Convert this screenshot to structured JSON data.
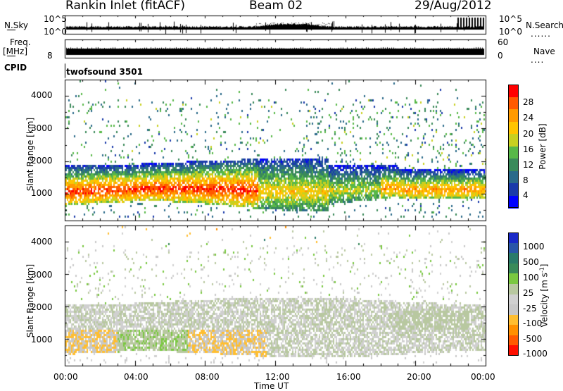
{
  "header": {
    "station": "Rankin Inlet (fitACF)",
    "beam": "Beam 02",
    "date": "29/Aug/2012"
  },
  "summary_panels": {
    "nsky_label": "N.Sky",
    "nsearch_label": "N.Search",
    "nsearch_key": "......",
    "counts_ticks": [
      "10^5",
      "10^0"
    ],
    "freq_label_top": "Freq.",
    "freq_label_unit": "[MHz]",
    "freq_ticks": [
      "8"
    ],
    "nave_label": "Nave",
    "nave_key": "....",
    "nave_ticks": [
      "60",
      "0"
    ],
    "cpid_label": "CPID",
    "cpid_value": "twofsound 3501"
  },
  "axes": {
    "y_label": "Slant Range [km]",
    "y_ticks": [
      "4000",
      "3000",
      "2000",
      "1000"
    ],
    "x_label": "Time UT",
    "x_ticks": [
      "00:00",
      "04:00",
      "08:00",
      "12:00",
      "16:00",
      "20:00",
      "00:00"
    ]
  },
  "colorbars": {
    "power": {
      "label": "Power [dB]",
      "ticks": [
        "28",
        "24",
        "20",
        "16",
        "12",
        "8",
        "4"
      ],
      "colors": [
        "#ff0000",
        "#ff5a00",
        "#ff9a00",
        "#ffc400",
        "#c8d020",
        "#58b848",
        "#3a8a5a",
        "#2a6a8a",
        "#1a3aaa",
        "#0000ff"
      ]
    },
    "velocity": {
      "label": "Velocity [m s",
      "label_exp": "-1",
      "label_close": "]",
      "ticks": [
        "1000",
        "500",
        "100",
        "25",
        "-25",
        "-100",
        "-500",
        "-1000"
      ],
      "colors": [
        "#1a2ac8",
        "#2a56a8",
        "#2a7a6a",
        "#3a8a5a",
        "#7ac840",
        "#b8c8a0",
        "#d0d0d0",
        "#c8c8c8",
        "#ffbe30",
        "#ff9000",
        "#ff5a00",
        "#ff1000"
      ]
    }
  },
  "chart_data": [
    {
      "type": "heatmap",
      "title": "Power [dB]",
      "xlabel": "Time UT",
      "ylabel": "Slant Range [km]",
      "xlim": [
        "00:00",
        "24:00"
      ],
      "ylim": [
        180,
        4500
      ],
      "zlim": [
        0,
        30
      ],
      "bands": [
        {
          "time": [
            0,
            2
          ],
          "range": [
            600,
            2000
          ],
          "peak_power": 28
        },
        {
          "time": [
            2,
            7
          ],
          "range": [
            600,
            1800
          ],
          "peak_power": 28
        },
        {
          "time": [
            7,
            12
          ],
          "range": [
            600,
            1600
          ],
          "peak_power": 26
        },
        {
          "time": [
            12,
            15
          ],
          "range": [
            800,
            1700
          ],
          "peak_power": 20
        },
        {
          "time": [
            15,
            18
          ],
          "range": [
            700,
            1900
          ],
          "peak_power": 18
        },
        {
          "time": [
            18,
            24
          ],
          "range": [
            900,
            1800
          ],
          "peak_power": 22
        }
      ]
    },
    {
      "type": "heatmap",
      "title": "Velocity [m s-1]",
      "xlabel": "Time UT",
      "ylabel": "Slant Range [km]",
      "xlim": [
        "00:00",
        "24:00"
      ],
      "ylim": [
        180,
        4500
      ],
      "zlim": [
        -1000,
        1000
      ],
      "bands": [
        {
          "time": [
            0,
            3
          ],
          "range": [
            500,
            1200
          ],
          "velocity": -300
        },
        {
          "time": [
            3,
            7
          ],
          "range": [
            600,
            1300
          ],
          "velocity": 150
        },
        {
          "time": [
            7,
            11
          ],
          "range": [
            700,
            1500
          ],
          "velocity": -400
        },
        {
          "time": [
            0,
            24
          ],
          "range": [
            1300,
            2200
          ],
          "velocity": 0
        },
        {
          "time": [
            18,
            23
          ],
          "range": [
            1300,
            1900
          ],
          "velocity": 80
        }
      ]
    }
  ]
}
